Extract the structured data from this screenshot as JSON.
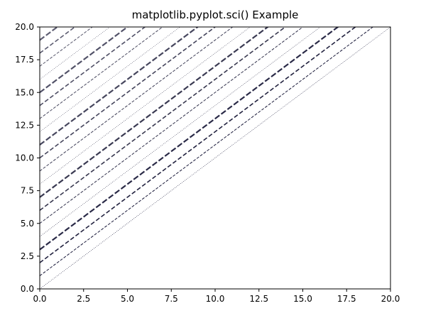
{
  "chart_data": {
    "type": "line",
    "title": "matplotlib.pyplot.sci() Example",
    "xlabel": "",
    "ylabel": "",
    "xlim": [
      0,
      20
    ],
    "ylim": [
      0,
      20
    ],
    "grid": false,
    "xticks": [
      "0.0",
      "2.5",
      "5.0",
      "7.5",
      "10.0",
      "12.5",
      "15.0",
      "17.5",
      "20.0"
    ],
    "yticks": [
      "0.0",
      "2.5",
      "5.0",
      "7.5",
      "10.0",
      "12.5",
      "15.0",
      "17.5",
      "20.0"
    ],
    "series": [
      {
        "x": [
          0,
          20
        ],
        "y": [
          0,
          20
        ],
        "color": "#1a1a3a",
        "style": "dotted-thin"
      },
      {
        "x": [
          0,
          20
        ],
        "y": [
          1,
          21
        ],
        "color": "#1a1a3a",
        "style": "dashed-thin"
      },
      {
        "x": [
          0,
          20
        ],
        "y": [
          2,
          22
        ],
        "color": "#22223f",
        "style": "dashed-medium"
      },
      {
        "x": [
          0,
          20
        ],
        "y": [
          3,
          23
        ],
        "color": "#2a2a47",
        "style": "dashed-thick"
      },
      {
        "x": [
          0,
          20
        ],
        "y": [
          4,
          24
        ],
        "color": "#30304b",
        "style": "dotted-thin"
      },
      {
        "x": [
          0,
          20
        ],
        "y": [
          5,
          25
        ],
        "color": "#33334d",
        "style": "dashed-thin"
      },
      {
        "x": [
          0,
          20
        ],
        "y": [
          6,
          26
        ],
        "color": "#38384f",
        "style": "dashed-medium"
      },
      {
        "x": [
          0,
          20
        ],
        "y": [
          7,
          27
        ],
        "color": "#3a3a52",
        "style": "dashed-thick"
      },
      {
        "x": [
          0,
          20
        ],
        "y": [
          8,
          28
        ],
        "color": "#3e3e55",
        "style": "dotted-thin"
      },
      {
        "x": [
          0,
          20
        ],
        "y": [
          9,
          29
        ],
        "color": "#404058",
        "style": "dashed-thin"
      },
      {
        "x": [
          0,
          20
        ],
        "y": [
          10,
          30
        ],
        "color": "#44445b",
        "style": "dashed-medium"
      },
      {
        "x": [
          0,
          20
        ],
        "y": [
          11,
          31
        ],
        "color": "#47475e",
        "style": "dashed-thick"
      },
      {
        "x": [
          0,
          20
        ],
        "y": [
          12,
          32
        ],
        "color": "#4a4a60",
        "style": "dotted-thin"
      },
      {
        "x": [
          0,
          20
        ],
        "y": [
          13,
          33
        ],
        "color": "#4c4c62",
        "style": "dashed-thin"
      },
      {
        "x": [
          0,
          20
        ],
        "y": [
          14,
          34
        ],
        "color": "#4f4f65",
        "style": "dashed-medium"
      },
      {
        "x": [
          0,
          20
        ],
        "y": [
          15,
          35
        ],
        "color": "#525268",
        "style": "dashed-thick"
      },
      {
        "x": [
          0,
          20
        ],
        "y": [
          16,
          36
        ],
        "color": "#55556a",
        "style": "dotted-thin"
      },
      {
        "x": [
          0,
          20
        ],
        "y": [
          17,
          37
        ],
        "color": "#58586c",
        "style": "dashed-thin"
      },
      {
        "x": [
          0,
          20
        ],
        "y": [
          18,
          38
        ],
        "color": "#5b5b6f",
        "style": "dashed-medium"
      },
      {
        "x": [
          0,
          20
        ],
        "y": [
          19,
          39
        ],
        "color": "#5e5e72",
        "style": "dashed-thick"
      }
    ]
  }
}
